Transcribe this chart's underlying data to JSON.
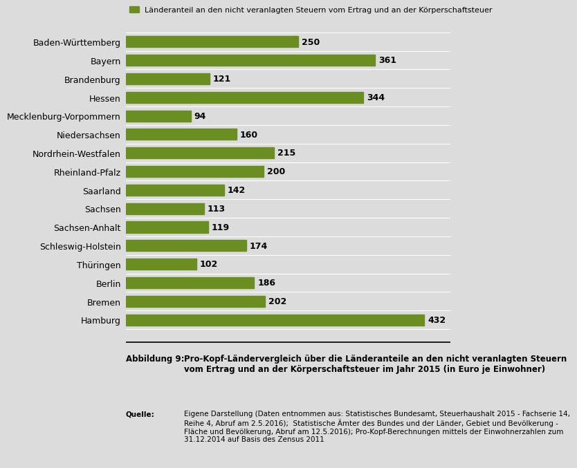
{
  "categories": [
    "Baden-Württemberg",
    "Bayern",
    "Brandenburg",
    "Hessen",
    "Mecklenburg-Vorpommern",
    "Niedersachsen",
    "Nordrhein-Westfalen",
    "Rheinland-Pfalz",
    "Saarland",
    "Sachsen",
    "Sachsen-Anhalt",
    "Schleswig-Holstein",
    "Thüringen",
    "Berlin",
    "Bremen",
    "Hamburg"
  ],
  "values": [
    250,
    361,
    121,
    344,
    94,
    160,
    215,
    200,
    142,
    113,
    119,
    174,
    102,
    186,
    202,
    432
  ],
  "bar_color": "#6b8e23",
  "legend_label": "Länderanteil an den nicht veranlagten Steuern vom Ertrag und an der Körperschaftsteuer",
  "background_color": "#dcdcdc",
  "plot_bg_color": "#dcdcdc",
  "label_fontsize": 9,
  "value_fontsize": 9,
  "caption_title": "Abbildung 9:",
  "caption_title_text": "Pro-Kopf-Ländervergleich über die Länderanteile an den nicht veranlagten Steuern\nvom Ertrag und an der Körperschaftsteuer im Jahr 2015 (in Euro je Einwohner)",
  "caption_source_label": "Quelle:",
  "caption_source_text": "Eigene Darstellung (Daten entnommen aus: Statistisches Bundesamt, Steuerhaushalt 2015 - Fachserie 14,\nReihe 4, Abruf am 2.5.2016);  Statistische Ämter des Bundes und der Länder, Gebiet und Bevölkerung -\nFläche und Bevölkerung, Abruf am 12.5.2016); Pro-Kopf-Berechnungen mittels der Einwohnerzahlen zum\n31.12.2014 auf Basis des Zensus 2011",
  "xlim": [
    0,
    470
  ]
}
